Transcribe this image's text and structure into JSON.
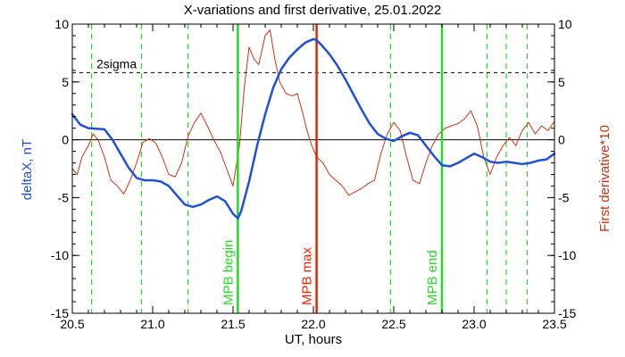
{
  "chart_data": {
    "type": "line",
    "title": "X-variations and first derivative, 25.01.2022",
    "xlabel": "UT, hours",
    "ylabel_left": "deltaX, nT",
    "ylabel_right": "First derivative*10",
    "xlim": [
      20.5,
      23.5
    ],
    "ylim": [
      -15,
      10
    ],
    "x_ticks": [
      "20.5",
      "21.0",
      "21.5",
      "22.0",
      "22.5",
      "23.0",
      "23.5"
    ],
    "y_ticks": [
      "-15",
      "-10",
      "-5",
      "0",
      "5",
      "10"
    ],
    "colors": {
      "deltaX": "#1e50dc",
      "derivative": "#cc3311",
      "mpb_begin": "#22dd22",
      "mpb_end": "#22dd22",
      "mpb_max": "#ee2200",
      "dashed_green": "#22dd22",
      "sigma": "#000000"
    },
    "sigma": {
      "label": "2sigma",
      "value": 5.8
    },
    "zero_line": 0,
    "dashed_green_x": [
      20.62,
      20.93,
      21.22,
      22.48,
      23.08,
      23.2,
      23.33
    ],
    "markers": [
      {
        "label": "MPB begin",
        "x": 21.53,
        "color": "#22dd22"
      },
      {
        "label": "MPB max",
        "x": 22.02,
        "color": "#ee2200"
      },
      {
        "label": "MPB end",
        "x": 22.8,
        "color": "#22dd22"
      }
    ],
    "series": [
      {
        "name": "deltaX, nT",
        "color": "#1e50dc",
        "x": [
          20.5,
          20.55,
          20.6,
          20.7,
          20.75,
          20.8,
          20.85,
          20.9,
          20.95,
          21.0,
          21.05,
          21.1,
          21.15,
          21.2,
          21.25,
          21.3,
          21.35,
          21.4,
          21.45,
          21.5,
          21.53,
          21.55,
          21.6,
          21.65,
          21.7,
          21.75,
          21.8,
          21.85,
          21.9,
          21.95,
          22.0,
          22.02,
          22.05,
          22.1,
          22.15,
          22.2,
          22.25,
          22.3,
          22.35,
          22.4,
          22.45,
          22.5,
          22.55,
          22.6,
          22.65,
          22.7,
          22.75,
          22.8,
          22.85,
          22.9,
          22.95,
          23.0,
          23.05,
          23.1,
          23.15,
          23.2,
          23.25,
          23.3,
          23.35,
          23.4,
          23.45,
          23.5
        ],
        "y": [
          2.2,
          1.3,
          1.0,
          0.9,
          0.0,
          -1.2,
          -2.4,
          -3.3,
          -3.5,
          -3.5,
          -3.6,
          -4.0,
          -4.8,
          -5.6,
          -5.8,
          -5.6,
          -5.2,
          -4.9,
          -5.3,
          -6.4,
          -6.8,
          -6.2,
          -3.6,
          -0.5,
          2.2,
          4.5,
          6.1,
          7.1,
          7.8,
          8.4,
          8.7,
          8.6,
          8.2,
          7.4,
          6.4,
          5.2,
          3.9,
          2.6,
          1.4,
          0.5,
          0.1,
          -0.1,
          0.3,
          0.6,
          0.4,
          -0.5,
          -1.4,
          -2.2,
          -2.3,
          -2.0,
          -1.6,
          -1.2,
          -1.5,
          -1.9,
          -2.0,
          -1.9,
          -2.0,
          -2.1,
          -2.0,
          -1.8,
          -1.7,
          -1.2
        ]
      },
      {
        "name": "First derivative*10",
        "color": "#cc3311",
        "x": [
          20.5,
          20.53,
          20.56,
          20.6,
          20.63,
          20.66,
          20.7,
          20.74,
          20.78,
          20.82,
          20.86,
          20.9,
          20.94,
          20.98,
          21.02,
          21.06,
          21.1,
          21.14,
          21.18,
          21.22,
          21.26,
          21.3,
          21.34,
          21.38,
          21.42,
          21.46,
          21.5,
          21.54,
          21.57,
          21.6,
          21.63,
          21.66,
          21.7,
          21.73,
          21.76,
          21.79,
          21.83,
          21.87,
          21.9,
          21.93,
          21.96,
          21.99,
          22.02,
          22.06,
          22.1,
          22.14,
          22.18,
          22.22,
          22.26,
          22.3,
          22.34,
          22.38,
          22.42,
          22.46,
          22.5,
          22.54,
          22.58,
          22.62,
          22.66,
          22.7,
          22.74,
          22.78,
          22.82,
          22.86,
          22.9,
          22.94,
          22.98,
          23.02,
          23.06,
          23.1,
          23.14,
          23.18,
          23.22,
          23.26,
          23.3,
          23.34,
          23.38,
          23.42,
          23.46,
          23.5
        ],
        "y": [
          -2.5,
          -3.0,
          -1.5,
          -0.5,
          0.5,
          0.0,
          -1.5,
          -3.5,
          -4.0,
          -4.7,
          -3.5,
          -2.0,
          -0.2,
          0.1,
          -0.3,
          -1.5,
          -3.0,
          -3.2,
          -2.0,
          0.3,
          1.5,
          2.3,
          1.2,
          0.0,
          -1.0,
          -2.5,
          -4.0,
          -0.5,
          4.5,
          8.0,
          7.0,
          6.5,
          9.0,
          9.5,
          7.0,
          5.0,
          4.0,
          3.8,
          4.0,
          2.5,
          0.8,
          -0.5,
          -1.5,
          -2.0,
          -3.0,
          -3.5,
          -4.0,
          -4.8,
          -4.5,
          -4.2,
          -3.8,
          -3.5,
          -1.2,
          0.5,
          1.5,
          0.8,
          -1.5,
          -3.5,
          -3.8,
          -2.0,
          -0.5,
          0.5,
          1.0,
          1.2,
          1.4,
          1.8,
          2.5,
          1.2,
          -1.5,
          -3.0,
          -1.5,
          -0.5,
          0.2,
          -0.5,
          0.8,
          1.5,
          0.5,
          1.2,
          0.8,
          1.6
        ]
      }
    ]
  }
}
